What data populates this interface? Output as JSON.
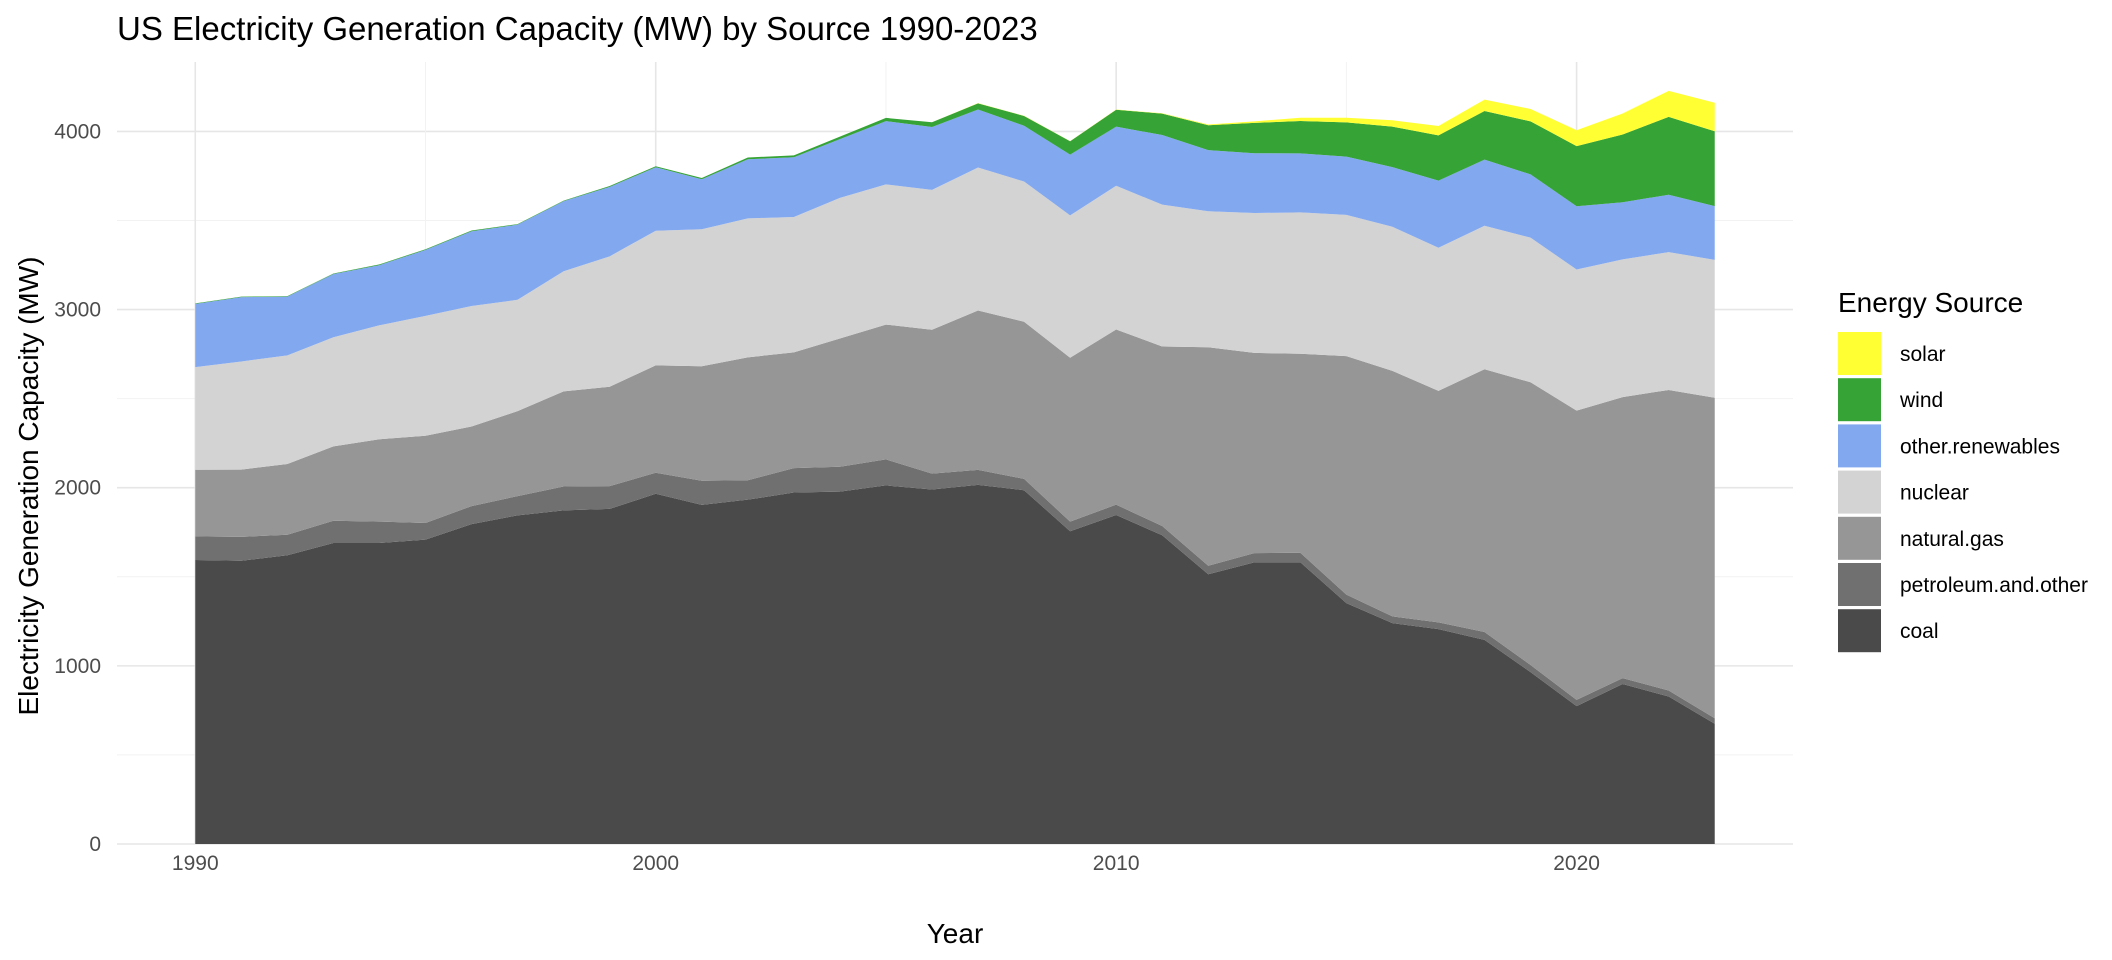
{
  "chart_data": {
    "type": "area",
    "stacked": true,
    "title": "US Electricity Generation Capacity (MW) by Source 1990-2023",
    "xlabel": "Year",
    "ylabel": "Electricity Generation Capacity (MW)",
    "xlim": [
      1988.3,
      2024.7
    ],
    "ylim": [
      0,
      4390
    ],
    "x_ticks": [
      1990,
      2000,
      2010,
      2020
    ],
    "y_ticks": [
      0,
      1000,
      2000,
      3000,
      4000
    ],
    "grid": true,
    "legend": {
      "title": "Energy Source",
      "position": "right"
    },
    "x": [
      1990,
      1991,
      1992,
      1993,
      1994,
      1995,
      1996,
      1997,
      1998,
      1999,
      2000,
      2001,
      2002,
      2003,
      2004,
      2005,
      2006,
      2007,
      2008,
      2009,
      2010,
      2011,
      2012,
      2013,
      2014,
      2015,
      2016,
      2017,
      2018,
      2019,
      2020,
      2021,
      2022,
      2023
    ],
    "series": [
      {
        "name": "coal",
        "color": "#4a4a4a",
        "values": [
          1594,
          1590,
          1621,
          1690,
          1690,
          1709,
          1796,
          1845,
          1873,
          1881,
          1966,
          1904,
          1933,
          1973,
          1978,
          2013,
          1990,
          2016,
          1986,
          1756,
          1847,
          1733,
          1514,
          1581,
          1582,
          1352,
          1240,
          1206,
          1146,
          965,
          774,
          898,
          828,
          675
        ]
      },
      {
        "name": "petroleum.and.other",
        "color": "#707070",
        "values": [
          133,
          134,
          115,
          125,
          120,
          93,
          101,
          108,
          134,
          128,
          118,
          135,
          109,
          137,
          140,
          146,
          89,
          84,
          64,
          54,
          58,
          52,
          48,
          52,
          53,
          48,
          38,
          38,
          44,
          40,
          35,
          33,
          34,
          31
        ]
      },
      {
        "name": "natural.gas",
        "color": "#969696",
        "values": [
          374,
          378,
          397,
          417,
          462,
          490,
          447,
          477,
          534,
          558,
          603,
          643,
          690,
          650,
          720,
          757,
          808,
          895,
          882,
          920,
          983,
          1008,
          1227,
          1124,
          1117,
          1339,
          1378,
          1300,
          1475,
          1587,
          1624,
          1578,
          1687,
          1799
        ]
      },
      {
        "name": "nuclear",
        "color": "#d3d3d3",
        "values": [
          576,
          607,
          610,
          613,
          640,
          673,
          676,
          625,
          674,
          732,
          756,
          769,
          780,
          760,
          789,
          787,
          785,
          803,
          787,
          799,
          807,
          796,
          763,
          785,
          794,
          793,
          809,
          803,
          806,
          812,
          792,
          773,
          774,
          774
        ]
      },
      {
        "name": "other.renewables",
        "color": "#82a8f0",
        "values": [
          355,
          361,
          330,
          355,
          338,
          370,
          420,
          422,
          394,
          390,
          356,
          281,
          332,
          335,
          330,
          355,
          353,
          325,
          313,
          341,
          332,
          391,
          343,
          336,
          331,
          327,
          335,
          377,
          371,
          355,
          355,
          321,
          322,
          302
        ]
      },
      {
        "name": "wind",
        "color": "#36a336",
        "values": [
          3,
          3,
          3,
          3,
          4,
          4,
          4,
          3,
          3,
          5,
          6,
          7,
          10,
          11,
          14,
          18,
          27,
          35,
          55,
          75,
          95,
          120,
          140,
          170,
          182,
          192,
          227,
          254,
          273,
          298,
          338,
          380,
          437,
          420
        ]
      },
      {
        "name": "solar",
        "color": "#ffff33",
        "values": [
          0,
          0,
          0,
          0,
          0,
          0,
          0,
          0,
          0,
          0,
          0,
          0,
          0,
          0,
          0,
          0,
          0,
          1,
          1,
          1,
          1,
          2,
          4,
          9,
          18,
          26,
          36,
          53,
          64,
          69,
          89,
          118,
          146,
          160
        ]
      }
    ]
  }
}
